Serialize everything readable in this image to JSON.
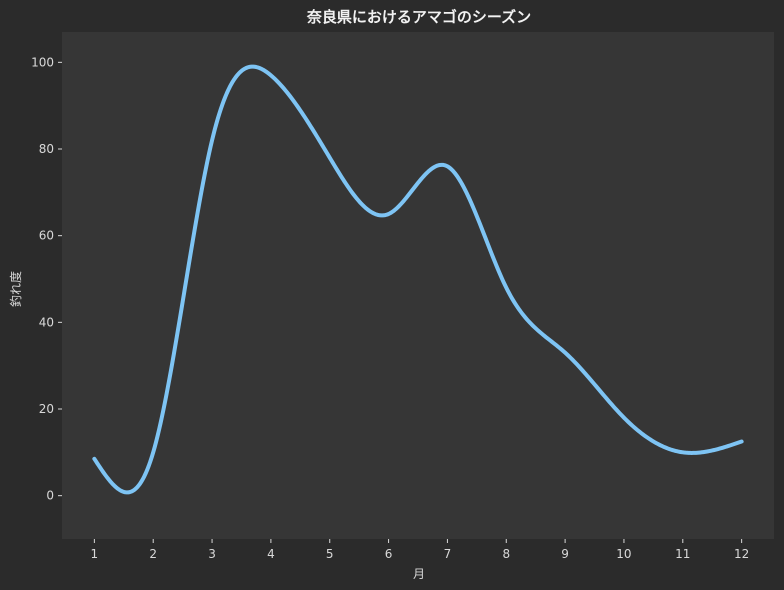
{
  "chart_data": {
    "type": "line",
    "title": "奈良県におけるアマゴのシーズン",
    "xlabel": "月",
    "ylabel": "釣れ度",
    "x": [
      1,
      2,
      3,
      4,
      5,
      6,
      7,
      8,
      9,
      10,
      11,
      12
    ],
    "series": [
      {
        "values": [
          8.5,
          10,
          82,
          97,
          78,
          65,
          76,
          48,
          33,
          18,
          10,
          12.5
        ]
      }
    ],
    "xlim": [
      0.45,
      12.55
    ],
    "ylim": [
      -10,
      107
    ],
    "xticks": [
      "1",
      "2",
      "3",
      "4",
      "5",
      "6",
      "7",
      "8",
      "9",
      "10",
      "11",
      "12"
    ],
    "yticks": [
      "0",
      "20",
      "40",
      "60",
      "80",
      "100"
    ],
    "line_color": "#7ec4f4",
    "plot_background": "#363636",
    "page_background": "#2b2b2b",
    "grid": false,
    "legend": "none"
  }
}
